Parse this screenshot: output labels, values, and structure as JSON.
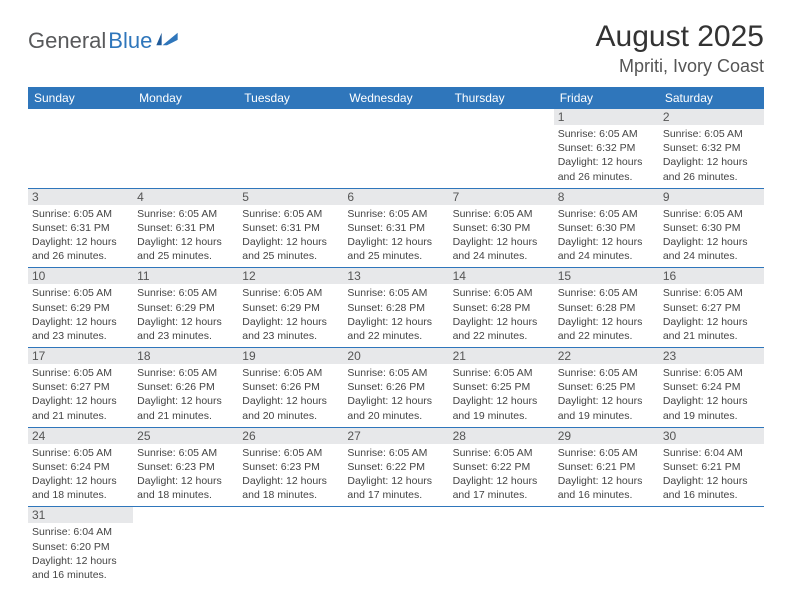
{
  "logo": {
    "part1": "General",
    "part2": "Blue"
  },
  "title": "August 2025",
  "location": "Mpriti, Ivory Coast",
  "colors": {
    "header_bg": "#2f76bb",
    "daynum_bg": "#e7e8ea"
  },
  "daysOfWeek": [
    "Sunday",
    "Monday",
    "Tuesday",
    "Wednesday",
    "Thursday",
    "Friday",
    "Saturday"
  ],
  "weeks": [
    [
      null,
      null,
      null,
      null,
      null,
      {
        "n": "1",
        "sr": "Sunrise: 6:05 AM",
        "ss": "Sunset: 6:32 PM",
        "d1": "Daylight: 12 hours",
        "d2": "and 26 minutes."
      },
      {
        "n": "2",
        "sr": "Sunrise: 6:05 AM",
        "ss": "Sunset: 6:32 PM",
        "d1": "Daylight: 12 hours",
        "d2": "and 26 minutes."
      }
    ],
    [
      {
        "n": "3",
        "sr": "Sunrise: 6:05 AM",
        "ss": "Sunset: 6:31 PM",
        "d1": "Daylight: 12 hours",
        "d2": "and 26 minutes."
      },
      {
        "n": "4",
        "sr": "Sunrise: 6:05 AM",
        "ss": "Sunset: 6:31 PM",
        "d1": "Daylight: 12 hours",
        "d2": "and 25 minutes."
      },
      {
        "n": "5",
        "sr": "Sunrise: 6:05 AM",
        "ss": "Sunset: 6:31 PM",
        "d1": "Daylight: 12 hours",
        "d2": "and 25 minutes."
      },
      {
        "n": "6",
        "sr": "Sunrise: 6:05 AM",
        "ss": "Sunset: 6:31 PM",
        "d1": "Daylight: 12 hours",
        "d2": "and 25 minutes."
      },
      {
        "n": "7",
        "sr": "Sunrise: 6:05 AM",
        "ss": "Sunset: 6:30 PM",
        "d1": "Daylight: 12 hours",
        "d2": "and 24 minutes."
      },
      {
        "n": "8",
        "sr": "Sunrise: 6:05 AM",
        "ss": "Sunset: 6:30 PM",
        "d1": "Daylight: 12 hours",
        "d2": "and 24 minutes."
      },
      {
        "n": "9",
        "sr": "Sunrise: 6:05 AM",
        "ss": "Sunset: 6:30 PM",
        "d1": "Daylight: 12 hours",
        "d2": "and 24 minutes."
      }
    ],
    [
      {
        "n": "10",
        "sr": "Sunrise: 6:05 AM",
        "ss": "Sunset: 6:29 PM",
        "d1": "Daylight: 12 hours",
        "d2": "and 23 minutes."
      },
      {
        "n": "11",
        "sr": "Sunrise: 6:05 AM",
        "ss": "Sunset: 6:29 PM",
        "d1": "Daylight: 12 hours",
        "d2": "and 23 minutes."
      },
      {
        "n": "12",
        "sr": "Sunrise: 6:05 AM",
        "ss": "Sunset: 6:29 PM",
        "d1": "Daylight: 12 hours",
        "d2": "and 23 minutes."
      },
      {
        "n": "13",
        "sr": "Sunrise: 6:05 AM",
        "ss": "Sunset: 6:28 PM",
        "d1": "Daylight: 12 hours",
        "d2": "and 22 minutes."
      },
      {
        "n": "14",
        "sr": "Sunrise: 6:05 AM",
        "ss": "Sunset: 6:28 PM",
        "d1": "Daylight: 12 hours",
        "d2": "and 22 minutes."
      },
      {
        "n": "15",
        "sr": "Sunrise: 6:05 AM",
        "ss": "Sunset: 6:28 PM",
        "d1": "Daylight: 12 hours",
        "d2": "and 22 minutes."
      },
      {
        "n": "16",
        "sr": "Sunrise: 6:05 AM",
        "ss": "Sunset: 6:27 PM",
        "d1": "Daylight: 12 hours",
        "d2": "and 21 minutes."
      }
    ],
    [
      {
        "n": "17",
        "sr": "Sunrise: 6:05 AM",
        "ss": "Sunset: 6:27 PM",
        "d1": "Daylight: 12 hours",
        "d2": "and 21 minutes."
      },
      {
        "n": "18",
        "sr": "Sunrise: 6:05 AM",
        "ss": "Sunset: 6:26 PM",
        "d1": "Daylight: 12 hours",
        "d2": "and 21 minutes."
      },
      {
        "n": "19",
        "sr": "Sunrise: 6:05 AM",
        "ss": "Sunset: 6:26 PM",
        "d1": "Daylight: 12 hours",
        "d2": "and 20 minutes."
      },
      {
        "n": "20",
        "sr": "Sunrise: 6:05 AM",
        "ss": "Sunset: 6:26 PM",
        "d1": "Daylight: 12 hours",
        "d2": "and 20 minutes."
      },
      {
        "n": "21",
        "sr": "Sunrise: 6:05 AM",
        "ss": "Sunset: 6:25 PM",
        "d1": "Daylight: 12 hours",
        "d2": "and 19 minutes."
      },
      {
        "n": "22",
        "sr": "Sunrise: 6:05 AM",
        "ss": "Sunset: 6:25 PM",
        "d1": "Daylight: 12 hours",
        "d2": "and 19 minutes."
      },
      {
        "n": "23",
        "sr": "Sunrise: 6:05 AM",
        "ss": "Sunset: 6:24 PM",
        "d1": "Daylight: 12 hours",
        "d2": "and 19 minutes."
      }
    ],
    [
      {
        "n": "24",
        "sr": "Sunrise: 6:05 AM",
        "ss": "Sunset: 6:24 PM",
        "d1": "Daylight: 12 hours",
        "d2": "and 18 minutes."
      },
      {
        "n": "25",
        "sr": "Sunrise: 6:05 AM",
        "ss": "Sunset: 6:23 PM",
        "d1": "Daylight: 12 hours",
        "d2": "and 18 minutes."
      },
      {
        "n": "26",
        "sr": "Sunrise: 6:05 AM",
        "ss": "Sunset: 6:23 PM",
        "d1": "Daylight: 12 hours",
        "d2": "and 18 minutes."
      },
      {
        "n": "27",
        "sr": "Sunrise: 6:05 AM",
        "ss": "Sunset: 6:22 PM",
        "d1": "Daylight: 12 hours",
        "d2": "and 17 minutes."
      },
      {
        "n": "28",
        "sr": "Sunrise: 6:05 AM",
        "ss": "Sunset: 6:22 PM",
        "d1": "Daylight: 12 hours",
        "d2": "and 17 minutes."
      },
      {
        "n": "29",
        "sr": "Sunrise: 6:05 AM",
        "ss": "Sunset: 6:21 PM",
        "d1": "Daylight: 12 hours",
        "d2": "and 16 minutes."
      },
      {
        "n": "30",
        "sr": "Sunrise: 6:04 AM",
        "ss": "Sunset: 6:21 PM",
        "d1": "Daylight: 12 hours",
        "d2": "and 16 minutes."
      }
    ],
    [
      {
        "n": "31",
        "sr": "Sunrise: 6:04 AM",
        "ss": "Sunset: 6:20 PM",
        "d1": "Daylight: 12 hours",
        "d2": "and 16 minutes."
      },
      null,
      null,
      null,
      null,
      null,
      null
    ]
  ]
}
